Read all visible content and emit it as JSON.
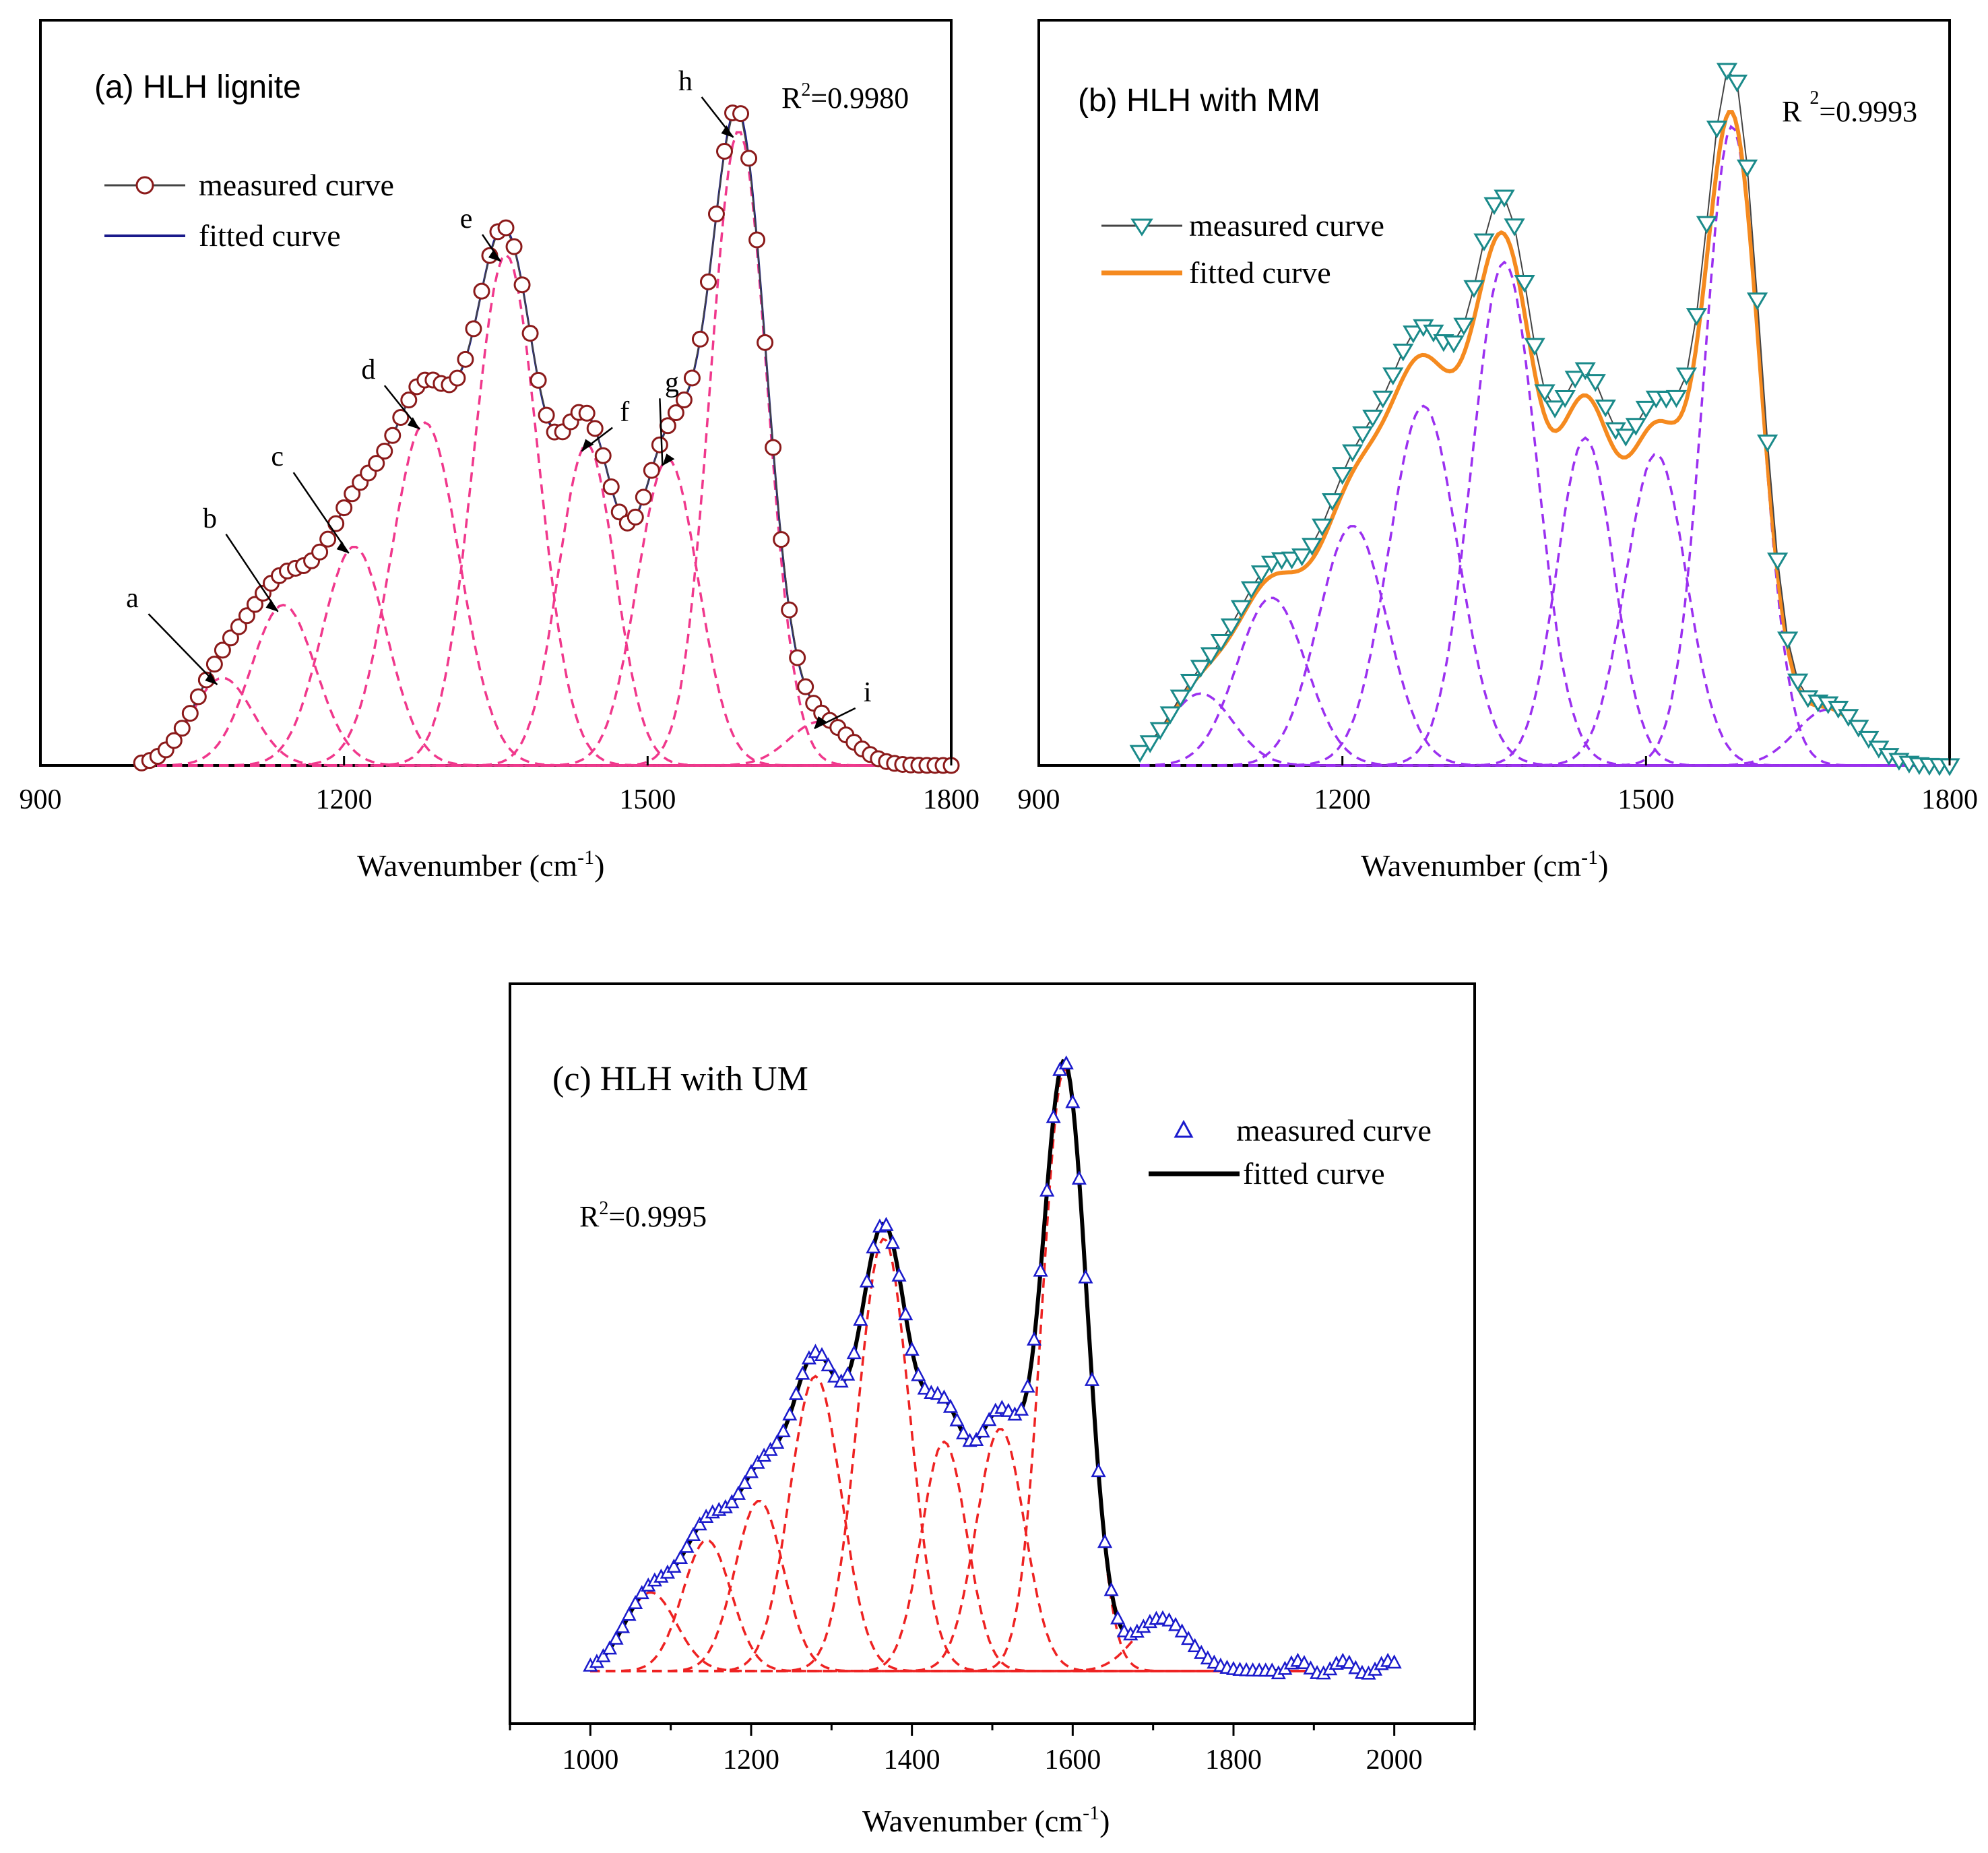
{
  "chart_data": [
    {
      "id": "a",
      "type": "line",
      "title": "(a)  HLH   lignite",
      "r2_label": "R",
      "r2_sup": "2",
      "r2_value": "=0.9980",
      "xlabel_main": "Wavenumber (cm",
      "xlabel_sup": "-1",
      "xlabel_tail": ")",
      "xlim": [
        900,
        1800
      ],
      "ylim": [
        0,
        1.05
      ],
      "xticks": [
        900,
        1200,
        1500,
        1800
      ],
      "legend": [
        {
          "label": "measured curve",
          "style": "circle-line",
          "color": "#8b1a1a"
        },
        {
          "label": "fitted curve",
          "style": "line",
          "color": "#1a1a8b"
        }
      ],
      "colors": {
        "measured": "#8b1a1a",
        "fitted": "#1a1a8b",
        "components": "#f0388c"
      },
      "range": [
        1000,
        1800
      ],
      "peaks": [
        {
          "label": "a",
          "center": 1080,
          "height": 0.12,
          "sigma": 30
        },
        {
          "label": "b",
          "center": 1140,
          "height": 0.22,
          "sigma": 32
        },
        {
          "label": "c",
          "center": 1210,
          "height": 0.3,
          "sigma": 32
        },
        {
          "label": "d",
          "center": 1280,
          "height": 0.47,
          "sigma": 34
        },
        {
          "label": "e",
          "center": 1360,
          "height": 0.7,
          "sigma": 32
        },
        {
          "label": "f",
          "center": 1440,
          "height": 0.44,
          "sigma": 28
        },
        {
          "label": "g",
          "center": 1520,
          "height": 0.42,
          "sigma": 30
        },
        {
          "label": "h",
          "center": 1590,
          "height": 0.87,
          "sigma": 28
        },
        {
          "label": "i",
          "center": 1670,
          "height": 0.06,
          "sigma": 30
        }
      ]
    },
    {
      "id": "b",
      "type": "line",
      "title": "(b)  HLH with  MM",
      "r2_label": "R",
      "r2_sup": "2",
      "r2_value": "=0.9993",
      "xlabel_main": "Wavenumber (cm",
      "xlabel_sup": "-1",
      "xlabel_tail": ")",
      "xlim": [
        900,
        1800
      ],
      "ylim": [
        0,
        1.05
      ],
      "xticks": [
        900,
        1200,
        1500,
        1800
      ],
      "legend": [
        {
          "label": "measured curve",
          "style": "triangle-down-line",
          "color": "#1a8a8a"
        },
        {
          "label": "fitted curve",
          "style": "line-thick",
          "color": "#f58a1f"
        }
      ],
      "colors": {
        "measured": "#1a8a8a",
        "fitted": "#f58a1f",
        "components": "#9b30f0"
      },
      "range": [
        1000,
        1800
      ],
      "peaks": [
        {
          "label": "",
          "center": 1060,
          "height": 0.09,
          "sigma": 32
        },
        {
          "label": "",
          "center": 1130,
          "height": 0.21,
          "sigma": 34
        },
        {
          "label": "",
          "center": 1210,
          "height": 0.3,
          "sigma": 34
        },
        {
          "label": "",
          "center": 1280,
          "height": 0.45,
          "sigma": 34
        },
        {
          "label": "",
          "center": 1360,
          "height": 0.63,
          "sigma": 32
        },
        {
          "label": "",
          "center": 1440,
          "height": 0.41,
          "sigma": 28
        },
        {
          "label": "",
          "center": 1510,
          "height": 0.39,
          "sigma": 30
        },
        {
          "label": "",
          "center": 1585,
          "height": 0.8,
          "sigma": 28
        },
        {
          "label": "",
          "center": 1680,
          "height": 0.07,
          "sigma": 32
        }
      ]
    },
    {
      "id": "c",
      "type": "line",
      "title": "(c)    HLH with UM",
      "r2_label": "R",
      "r2_sup": "2",
      "r2_value": "=0.9995",
      "xlabel_main": "Wavenumber (cm",
      "xlabel_sup": "-1",
      "xlabel_tail": ")",
      "xlim": [
        900,
        2100
      ],
      "ylim": [
        0,
        1.05
      ],
      "xticks": [
        1000,
        1200,
        1400,
        1600,
        1800,
        2000
      ],
      "legend": [
        {
          "label": "measured curve",
          "style": "triangle-up",
          "color": "#1a1acc"
        },
        {
          "label": "fitted curve",
          "style": "line-thick",
          "color": "#000000"
        }
      ],
      "colors": {
        "measured": "#1a1acc",
        "fitted": "#000000",
        "components": "#ee2222"
      },
      "range": [
        1000,
        2000
      ],
      "peaks": [
        {
          "label": "",
          "center": 1075,
          "height": 0.12,
          "sigma": 32
        },
        {
          "label": "",
          "center": 1145,
          "height": 0.2,
          "sigma": 30
        },
        {
          "label": "",
          "center": 1210,
          "height": 0.26,
          "sigma": 30
        },
        {
          "label": "",
          "center": 1280,
          "height": 0.45,
          "sigma": 32
        },
        {
          "label": "",
          "center": 1365,
          "height": 0.66,
          "sigma": 32
        },
        {
          "label": "",
          "center": 1440,
          "height": 0.35,
          "sigma": 28
        },
        {
          "label": "",
          "center": 1510,
          "height": 0.37,
          "sigma": 30
        },
        {
          "label": "",
          "center": 1590,
          "height": 0.92,
          "sigma": 28
        },
        {
          "label": "",
          "center": 1710,
          "height": 0.08,
          "sigma": 34
        }
      ]
    }
  ]
}
